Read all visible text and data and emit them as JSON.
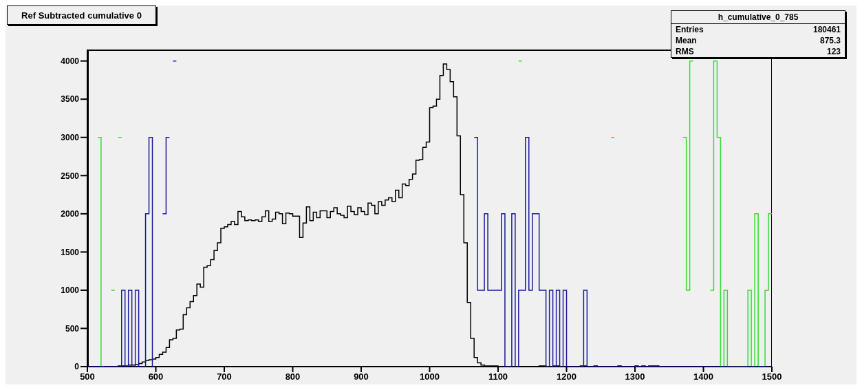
{
  "chart_data": {
    "type": "step",
    "title": "Ref Subtracted cumulative 0",
    "annotations": [
      "h_cumulative_0_785",
      "Entries",
      "180461",
      "Mean",
      "875.3",
      "RMS",
      "123"
    ],
    "x": [
      500,
      505,
      510,
      515,
      520,
      525,
      530,
      535,
      540,
      545,
      550,
      555,
      560,
      565,
      570,
      575,
      580,
      585,
      590,
      595,
      600,
      605,
      610,
      615,
      620,
      625,
      630,
      635,
      640,
      645,
      650,
      655,
      660,
      665,
      670,
      675,
      680,
      685,
      690,
      695,
      700,
      705,
      710,
      715,
      720,
      725,
      730,
      735,
      740,
      745,
      750,
      755,
      760,
      765,
      770,
      775,
      780,
      785,
      790,
      795,
      800,
      805,
      810,
      815,
      820,
      825,
      830,
      835,
      840,
      845,
      850,
      855,
      860,
      865,
      870,
      875,
      880,
      885,
      890,
      895,
      900,
      905,
      910,
      915,
      920,
      925,
      930,
      935,
      940,
      945,
      950,
      955,
      960,
      965,
      970,
      975,
      980,
      985,
      990,
      995,
      1000,
      1005,
      1010,
      1015,
      1020,
      1025,
      1030,
      1035,
      1040,
      1045,
      1050,
      1055,
      1060,
      1065,
      1070,
      1075,
      1080,
      1085,
      1090,
      1095,
      1100,
      1105,
      1110,
      1115,
      1120,
      1125,
      1130,
      1135,
      1140,
      1145,
      1150,
      1155,
      1160,
      1165,
      1170,
      1175,
      1180,
      1185,
      1190,
      1195,
      1200,
      1205,
      1210,
      1215,
      1220,
      1225,
      1230,
      1235,
      1240,
      1245,
      1250,
      1255,
      1260,
      1265,
      1270,
      1275,
      1280,
      1285,
      1290,
      1295,
      1300,
      1305,
      1310,
      1315,
      1320,
      1325,
      1330,
      1335,
      1340,
      1345,
      1350,
      1355,
      1360,
      1365,
      1370,
      1375,
      1380,
      1385,
      1390,
      1395,
      1400,
      1405,
      1410,
      1415,
      1420,
      1425,
      1430,
      1435,
      1440,
      1445,
      1450,
      1455,
      1460,
      1465,
      1470,
      1475,
      1480,
      1485,
      1490,
      1495
    ],
    "series": [
      {
        "color": "#000000",
        "values": [
          0,
          0,
          0,
          0,
          0,
          0,
          0,
          0,
          0,
          10,
          10,
          10,
          20,
          20,
          30,
          40,
          60,
          80,
          90,
          100,
          120,
          160,
          190,
          250,
          350,
          370,
          480,
          490,
          680,
          770,
          850,
          930,
          1080,
          1040,
          1300,
          1320,
          1400,
          1520,
          1620,
          1810,
          1830,
          1860,
          1900,
          1860,
          2030,
          1960,
          1910,
          1920,
          1910,
          1920,
          1900,
          1960,
          2040,
          1900,
          1930,
          2020,
          2000,
          1870,
          2010,
          2000,
          1970,
          1970,
          1690,
          1880,
          2090,
          1910,
          2020,
          1950,
          2040,
          2040,
          1950,
          2030,
          2080,
          2000,
          1980,
          1950,
          2100,
          2030,
          1990,
          2080,
          2030,
          1990,
          2140,
          2110,
          2000,
          2160,
          2110,
          2180,
          2210,
          2160,
          2310,
          2210,
          2390,
          2370,
          2450,
          2520,
          2700,
          2710,
          2870,
          2940,
          3390,
          3410,
          3500,
          3810,
          3960,
          3890,
          3730,
          3530,
          3020,
          2250,
          1620,
          840,
          370,
          120,
          50,
          20,
          10,
          10,
          10,
          10,
          0,
          0,
          0,
          0,
          0,
          0,
          0,
          0,
          0,
          0,
          0,
          0,
          10,
          10,
          0,
          0,
          10,
          10,
          0,
          0,
          0,
          0,
          0,
          0,
          10,
          10,
          0,
          0,
          10,
          0,
          0,
          0,
          0,
          0,
          0,
          10,
          0,
          0,
          0,
          0,
          10,
          0,
          10,
          0,
          10,
          10,
          10,
          0,
          0,
          0,
          0,
          0,
          0,
          0,
          0,
          0,
          0,
          0,
          0,
          0,
          0,
          0,
          0,
          0,
          0,
          0,
          0,
          0,
          0,
          0,
          0,
          0,
          0,
          0,
          0,
          0,
          0,
          0,
          0,
          0
        ]
      },
      {
        "color": "#33dd33",
        "values": [
          null,
          null,
          null,
          3000,
          0,
          null,
          null,
          1000,
          null,
          3000,
          null,
          null,
          null,
          null,
          null,
          null,
          null,
          null,
          null,
          null,
          null,
          null,
          null,
          null,
          null,
          null,
          null,
          null,
          null,
          null,
          null,
          null,
          null,
          null,
          null,
          null,
          null,
          null,
          null,
          null,
          null,
          null,
          null,
          null,
          null,
          null,
          null,
          null,
          null,
          null,
          null,
          null,
          null,
          null,
          null,
          null,
          null,
          null,
          null,
          null,
          null,
          null,
          null,
          null,
          null,
          null,
          null,
          null,
          null,
          null,
          null,
          null,
          null,
          null,
          null,
          null,
          null,
          null,
          null,
          null,
          null,
          null,
          null,
          null,
          null,
          null,
          null,
          null,
          null,
          null,
          null,
          null,
          null,
          null,
          null,
          null,
          null,
          null,
          null,
          null,
          null,
          null,
          null,
          null,
          null,
          null,
          null,
          null,
          null,
          null,
          null,
          null,
          null,
          null,
          null,
          null,
          null,
          null,
          null,
          null,
          null,
          null,
          null,
          null,
          null,
          null,
          4000,
          null,
          null,
          null,
          null,
          null,
          null,
          null,
          null,
          null,
          null,
          null,
          null,
          null,
          null,
          null,
          null,
          null,
          null,
          null,
          null,
          null,
          null,
          null,
          null,
          null,
          null,
          3000,
          null,
          null,
          null,
          null,
          null,
          null,
          null,
          null,
          null,
          null,
          null,
          null,
          null,
          null,
          null,
          null,
          null,
          null,
          null,
          null,
          3000,
          1000,
          4000,
          null,
          null,
          null,
          null,
          null,
          1000,
          4000,
          3000,
          0,
          1000,
          0,
          0,
          0,
          0,
          0,
          0,
          1000,
          0,
          2000,
          0,
          0,
          1000,
          2000
        ]
      },
      {
        "color": "#1a1aa0",
        "values": [
          0,
          0,
          0,
          0,
          0,
          0,
          0,
          0,
          0,
          0,
          1000,
          0,
          1000,
          0,
          1000,
          0,
          0,
          2000,
          3000,
          0,
          null,
          null,
          2000,
          3000,
          null,
          4000,
          null,
          null,
          null,
          null,
          null,
          null,
          null,
          null,
          null,
          null,
          null,
          null,
          null,
          null,
          null,
          null,
          null,
          null,
          null,
          null,
          null,
          null,
          null,
          null,
          null,
          null,
          null,
          null,
          null,
          null,
          null,
          null,
          null,
          null,
          null,
          null,
          null,
          null,
          null,
          null,
          null,
          null,
          null,
          null,
          null,
          null,
          null,
          null,
          null,
          null,
          null,
          null,
          null,
          null,
          null,
          null,
          null,
          null,
          null,
          null,
          null,
          null,
          null,
          null,
          null,
          null,
          null,
          null,
          null,
          null,
          null,
          null,
          null,
          null,
          null,
          null,
          null,
          null,
          null,
          null,
          null,
          null,
          null,
          null,
          null,
          null,
          null,
          3000,
          1000,
          1000,
          2000,
          1000,
          1000,
          1000,
          1000,
          2000,
          0,
          0,
          2000,
          0,
          1000,
          1000,
          3000,
          1000,
          2000,
          2000,
          1000,
          1000,
          0,
          1000,
          0,
          1000,
          0,
          1000,
          0,
          0,
          0,
          0,
          0,
          1000,
          0,
          0,
          0,
          0,
          0,
          0,
          0,
          0,
          0,
          0,
          0,
          0,
          0,
          0,
          0,
          0,
          0,
          0,
          0,
          0,
          0,
          0,
          0,
          0,
          0,
          0,
          0,
          0,
          0,
          0,
          0,
          0,
          0,
          0,
          0,
          0,
          0,
          0,
          0,
          0,
          0,
          0,
          0,
          0,
          0,
          0,
          0,
          0,
          0,
          0,
          0,
          0,
          0,
          0
        ]
      }
    ],
    "xlim": [
      500,
      1500
    ],
    "xticks": [
      500,
      600,
      700,
      800,
      900,
      1000,
      1100,
      1200,
      1300,
      1400,
      1500
    ],
    "ylim": [
      0,
      4150
    ],
    "yticks": [
      0,
      500,
      1000,
      1500,
      2000,
      2500,
      3000,
      3500,
      4000
    ]
  }
}
